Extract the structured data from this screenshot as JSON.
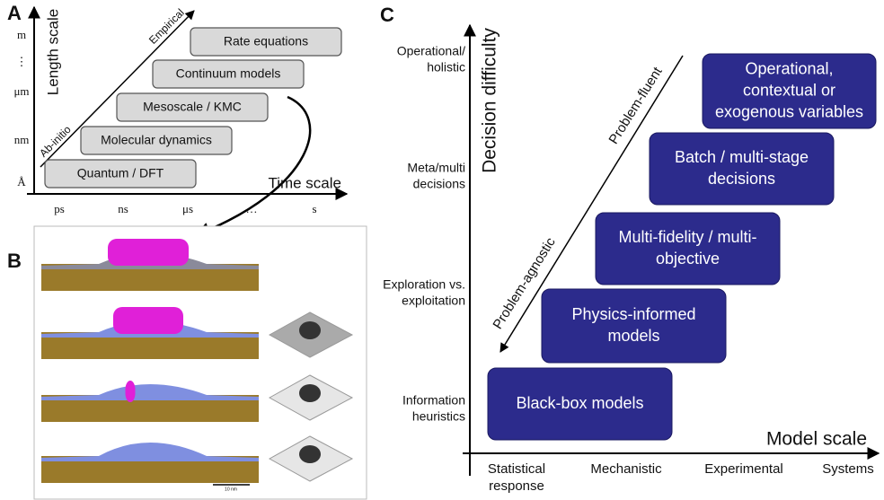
{
  "panel_a": {
    "label": "A",
    "y_axis_title": "Length scale",
    "x_axis_title": "Time scale",
    "y_ticks": [
      "m",
      "⋮",
      "μm",
      "nm",
      "Å"
    ],
    "x_ticks": [
      "ps",
      "ns",
      "μs",
      "…",
      "s"
    ],
    "arrow_labels": [
      "Ab-initio",
      "Empirical"
    ],
    "boxes": [
      "Quantum / DFT",
      "Molecular dynamics",
      "Mesoscale / KMC",
      "Continuum models",
      "Rate equations"
    ]
  },
  "panel_b": {
    "label": "B",
    "scale_bar": "10 nm"
  },
  "panel_c": {
    "label": "C",
    "y_axis_title": "Decision difficulty",
    "x_axis_title": "Model scale",
    "y_ticks": [
      [
        "Operational/",
        "holistic"
      ],
      [
        "Meta/multi",
        "decisions"
      ],
      [
        "Exploration vs.",
        "exploitation"
      ],
      [
        "Information",
        "heuristics"
      ]
    ],
    "x_ticks": [
      [
        "Statistical",
        "response"
      ],
      [
        "Mechanistic"
      ],
      [
        "Experimental"
      ],
      [
        "Systems"
      ]
    ],
    "arrow_labels": [
      "Problem-fluent",
      "Problem-agnostic"
    ],
    "boxes": [
      [
        "Black-box models"
      ],
      [
        "Physics-informed",
        "models"
      ],
      [
        "Multi-fidelity / multi-",
        "objective"
      ],
      [
        "Batch / multi-stage",
        "decisions"
      ],
      [
        "Operational,",
        "contextual or",
        "exogenous variables"
      ]
    ]
  }
}
